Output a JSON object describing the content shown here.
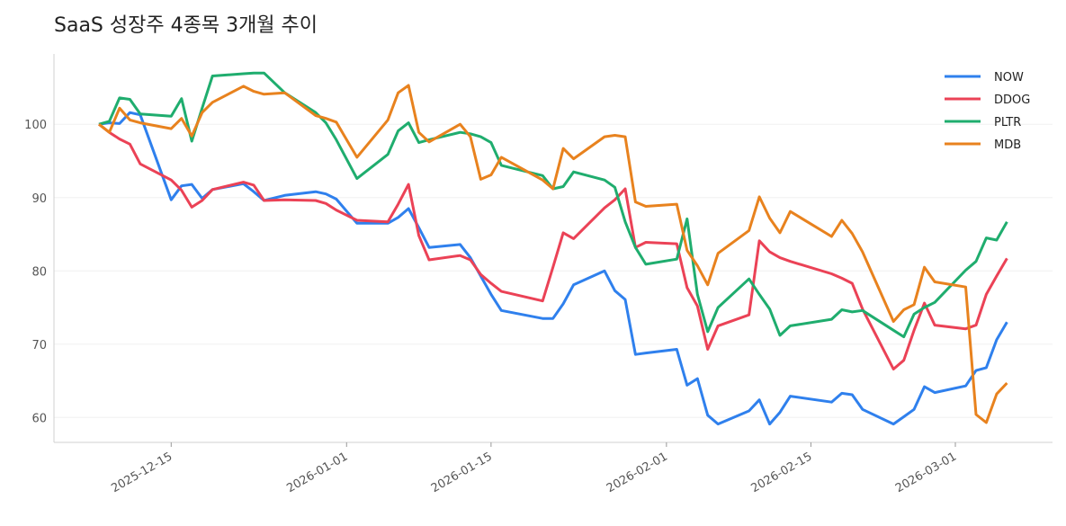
{
  "chart_data": {
    "type": "line",
    "title": "SaaS 성장주 4종목 3개월 추이",
    "xlabel": "",
    "ylabel": "",
    "ylim": [
      56.6,
      109.6
    ],
    "yticks": [
      60,
      70,
      80,
      90,
      100
    ],
    "xticks": [
      "2025-12-15",
      "2026-01-01",
      "2026-01-15",
      "2026-02-01",
      "2026-02-15",
      "2026-03-01"
    ],
    "grid": "horizontal",
    "legend": "top-right",
    "x": [
      "2025-12-08",
      "2025-12-09",
      "2025-12-10",
      "2025-12-11",
      "2025-12-12",
      "2025-12-15",
      "2025-12-16",
      "2025-12-17",
      "2025-12-18",
      "2025-12-19",
      "2025-12-22",
      "2025-12-23",
      "2025-12-24",
      "2025-12-26",
      "2025-12-29",
      "2025-12-30",
      "2025-12-31",
      "2026-01-02",
      "2026-01-05",
      "2026-01-06",
      "2026-01-07",
      "2026-01-08",
      "2026-01-09",
      "2026-01-12",
      "2026-01-13",
      "2026-01-14",
      "2026-01-15",
      "2026-01-16",
      "2026-01-20",
      "2026-01-21",
      "2026-01-22",
      "2026-01-23",
      "2026-01-26",
      "2026-01-27",
      "2026-01-28",
      "2026-01-29",
      "2026-01-30",
      "2026-02-02",
      "2026-02-03",
      "2026-02-04",
      "2026-02-05",
      "2026-02-06",
      "2026-02-09",
      "2026-02-10",
      "2026-02-11",
      "2026-02-12",
      "2026-02-13",
      "2026-02-17",
      "2026-02-18",
      "2026-02-19",
      "2026-02-20",
      "2026-02-23",
      "2026-02-24",
      "2026-02-25",
      "2026-02-26",
      "2026-02-27",
      "2026-03-02",
      "2026-03-03",
      "2026-03-04",
      "2026-03-05",
      "2026-03-06"
    ],
    "series": [
      {
        "name": "NOW",
        "color": "#2f80ed",
        "values": [
          100,
          100.2,
          100.1,
          101.6,
          101.3,
          89.7,
          91.6,
          91.8,
          89.9,
          91.1,
          91.9,
          90.8,
          89.6,
          90.3,
          90.8,
          90.5,
          89.8,
          86.5,
          86.5,
          87.3,
          88.5,
          85.9,
          83.2,
          83.6,
          81.8,
          79.3,
          76.8,
          74.6,
          73.5,
          73.5,
          75.5,
          78.1,
          80.0,
          77.3,
          76.1,
          68.6,
          68.8,
          69.3,
          64.4,
          65.3,
          60.3,
          59.1,
          60.9,
          62.4,
          59.1,
          60.7,
          62.9,
          62.1,
          63.3,
          63.1,
          61.1,
          59.1,
          60.1,
          61.1,
          64.2,
          63.4,
          64.3,
          66.4,
          66.8,
          70.6,
          73.0
        ]
      },
      {
        "name": "DDOG",
        "color": "#eb4256",
        "values": [
          100,
          98.9,
          98.0,
          97.3,
          94.6,
          92.4,
          91.0,
          88.7,
          89.6,
          91.1,
          92.1,
          91.7,
          89.6,
          89.7,
          89.6,
          89.2,
          88.3,
          86.9,
          86.7,
          89.1,
          91.8,
          84.8,
          81.5,
          82.1,
          81.5,
          79.5,
          78.3,
          77.2,
          75.9,
          80.5,
          85.2,
          84.4,
          88.6,
          89.7,
          91.2,
          83.2,
          83.9,
          83.7,
          77.7,
          75.2,
          69.3,
          72.5,
          74.0,
          84.1,
          82.6,
          81.8,
          81.3,
          79.6,
          79.0,
          78.3,
          74.8,
          66.6,
          67.8,
          71.9,
          75.6,
          72.6,
          72.1,
          72.6,
          76.8,
          79.3,
          81.7
        ]
      },
      {
        "name": "PLTR",
        "color": "#1fad6e",
        "values": [
          100,
          100.4,
          103.6,
          103.4,
          101.4,
          101.1,
          103.5,
          97.7,
          102.2,
          106.6,
          106.9,
          107.0,
          107.0,
          104.3,
          101.6,
          100.2,
          97.9,
          92.6,
          95.9,
          99.1,
          100.2,
          97.5,
          97.9,
          98.9,
          98.7,
          98.3,
          97.5,
          94.4,
          93.0,
          91.2,
          91.5,
          93.5,
          92.4,
          91.4,
          86.7,
          83.2,
          80.9,
          81.6,
          87.1,
          76.8,
          71.7,
          75.0,
          78.9,
          76.8,
          74.8,
          71.2,
          72.5,
          73.4,
          74.7,
          74.4,
          74.6,
          71.9,
          71.0,
          74.1,
          75.0,
          75.7,
          80.1,
          81.3,
          84.5,
          84.2,
          86.7
        ]
      },
      {
        "name": "MDB",
        "color": "#e8821e",
        "values": [
          100,
          98.9,
          102.2,
          100.6,
          100.2,
          99.4,
          100.8,
          98.4,
          101.6,
          103.0,
          105.2,
          104.5,
          104.1,
          104.3,
          101.2,
          100.8,
          100.3,
          95.5,
          100.6,
          104.3,
          105.3,
          98.9,
          97.6,
          100.0,
          98.3,
          92.5,
          93.1,
          95.5,
          92.4,
          91.2,
          96.7,
          95.3,
          98.3,
          98.5,
          98.3,
          89.4,
          88.8,
          89.1,
          82.8,
          80.7,
          78.1,
          82.4,
          85.5,
          90.1,
          87.2,
          85.2,
          88.1,
          84.7,
          86.9,
          85.1,
          82.6,
          73.1,
          74.7,
          75.4,
          80.5,
          78.5,
          77.8,
          60.4,
          59.3,
          63.2,
          64.7
        ]
      }
    ]
  },
  "colors": {
    "grid": "#f0f0f0",
    "axis": "#d0d0d0",
    "tick_text": "#555555"
  }
}
